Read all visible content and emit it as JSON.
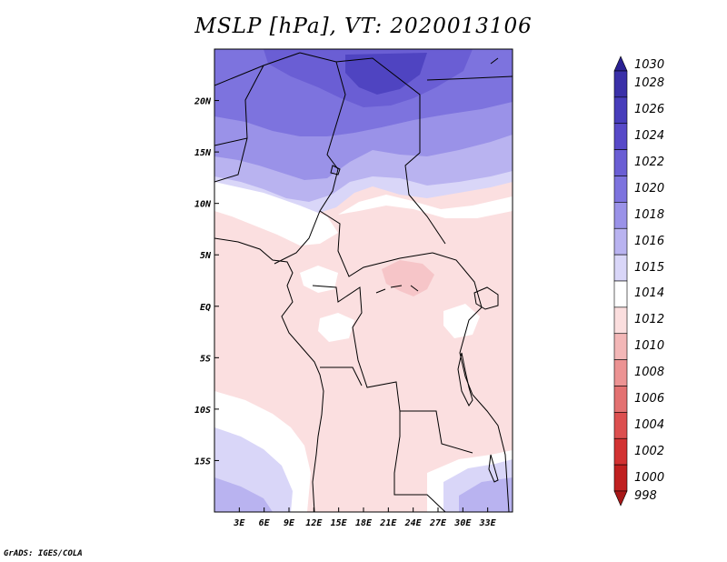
{
  "title": "MSLP [hPa], VT: 2020013106",
  "credit": "GrADS: IGES/COLA",
  "map": {
    "lon_range": [
      0,
      36
    ],
    "lat_range": [
      -20,
      25
    ],
    "x_ticks": [
      {
        "lon": 3,
        "label": "3E"
      },
      {
        "lon": 6,
        "label": "6E"
      },
      {
        "lon": 9,
        "label": "9E"
      },
      {
        "lon": 12,
        "label": "12E"
      },
      {
        "lon": 15,
        "label": "15E"
      },
      {
        "lon": 18,
        "label": "18E"
      },
      {
        "lon": 21,
        "label": "21E"
      },
      {
        "lon": 24,
        "label": "24E"
      },
      {
        "lon": 27,
        "label": "27E"
      },
      {
        "lon": 30,
        "label": "30E"
      },
      {
        "lon": 33,
        "label": "33E"
      }
    ],
    "y_ticks": [
      {
        "lat": 20,
        "label": "20N"
      },
      {
        "lat": 15,
        "label": "15N"
      },
      {
        "lat": 10,
        "label": "10N"
      },
      {
        "lat": 5,
        "label": "5N"
      },
      {
        "lat": 0,
        "label": "EQ"
      },
      {
        "lat": -5,
        "label": "5S"
      },
      {
        "lat": -10,
        "label": "10S"
      },
      {
        "lat": -15,
        "label": "15S"
      }
    ]
  },
  "colorbar": {
    "levels": [
      "1030",
      "1028",
      "1026",
      "1024",
      "1022",
      "1020",
      "1018",
      "1016",
      "1015",
      "1014",
      "1012",
      "1010",
      "1008",
      "1006",
      "1004",
      "1002",
      "1000",
      "998"
    ],
    "colors": [
      "#2b2193",
      "#3a30a8",
      "#473dbb",
      "#5749c8",
      "#6a5ed4",
      "#7d73de",
      "#9a92e8",
      "#b9b3f0",
      "#d9d6f8",
      "#ffffff",
      "#fbdede",
      "#f3b7b7",
      "#ec9393",
      "#e37171",
      "#dc4f4f",
      "#d23232",
      "#c02020",
      "#a81818"
    ]
  }
}
